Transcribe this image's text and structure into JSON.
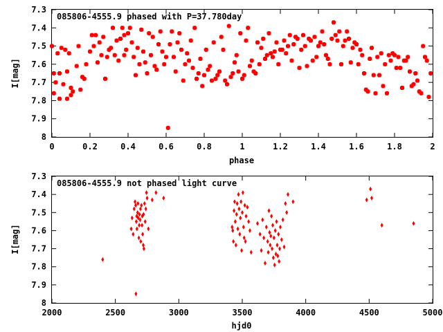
{
  "colors": {
    "points": "#ff0000",
    "axes": "#000000",
    "background": "#ffffff"
  },
  "chart_data": [
    {
      "type": "scatter",
      "title": "085806-4555.9 phased with P=37.780day",
      "xlabel": "phase",
      "ylabel": "I[mag]",
      "xlim": [
        0,
        2
      ],
      "ylim": [
        7.3,
        8
      ],
      "y_inverted": true,
      "marker": "square-dot",
      "grid": false,
      "xticks": [
        "0",
        "0.2",
        "0.4",
        "0.6",
        "0.8",
        "1",
        "1.2",
        "1.4",
        "1.6",
        "1.8",
        "2"
      ],
      "yticks": [
        "7.3",
        "7.4",
        "7.5",
        "7.6",
        "7.7",
        "7.8",
        "7.9",
        "8"
      ],
      "series": [
        {
          "x": [
            0.0,
            0.01,
            0.01,
            0.02,
            0.03,
            0.04,
            0.04,
            0.05,
            0.06,
            0.07,
            0.08,
            0.08,
            0.09,
            0.1,
            0.1,
            0.11,
            0.13,
            0.14,
            0.15,
            0.16,
            0.17,
            0.18,
            0.2,
            0.21,
            0.22,
            0.23,
            0.24,
            0.25,
            0.26,
            0.27,
            0.28,
            0.29,
            0.3,
            0.31,
            0.32,
            0.33,
            0.34,
            0.35,
            0.36,
            0.37,
            0.38,
            0.38,
            0.39,
            0.4,
            0.41,
            0.42,
            0.43,
            0.44,
            0.45,
            0.46,
            0.47,
            0.48,
            0.49,
            0.5,
            0.51,
            0.52,
            0.53,
            0.54,
            0.55,
            0.56,
            0.57,
            0.58,
            0.59,
            0.6,
            0.61,
            0.62,
            0.63,
            0.64,
            0.65,
            0.66,
            0.67,
            0.68,
            0.69,
            0.7,
            0.71,
            0.72,
            0.73,
            0.74,
            0.75,
            0.76,
            0.77,
            0.78,
            0.79,
            0.8,
            0.81,
            0.82,
            0.83,
            0.84,
            0.85,
            0.86,
            0.87,
            0.88,
            0.89,
            0.9,
            0.91,
            0.92,
            0.93,
            0.94,
            0.95,
            0.96,
            0.97,
            0.98,
            0.99,
            1.0,
            1.01,
            1.02,
            1.03,
            1.04,
            1.05,
            1.06,
            1.07,
            1.08,
            1.09,
            1.1,
            1.11,
            1.12,
            1.13,
            1.14,
            1.15,
            1.16,
            1.17,
            1.18,
            1.19,
            1.2,
            1.21,
            1.22,
            1.23,
            1.24,
            1.25,
            1.26,
            1.27,
            1.28,
            1.29,
            1.3,
            1.31,
            1.32,
            1.33,
            1.34,
            1.35,
            1.36,
            1.37,
            1.38,
            1.39,
            1.4,
            1.41,
            1.42,
            1.43,
            1.44,
            1.45,
            1.46,
            1.47,
            1.48,
            1.49,
            1.5,
            1.51,
            1.52,
            1.53,
            1.54,
            1.55,
            1.56,
            1.57,
            1.58,
            1.59,
            1.6,
            1.61,
            1.62,
            1.63,
            1.64,
            1.65,
            1.66,
            1.67,
            1.68,
            1.69,
            1.7,
            1.71,
            1.72,
            1.73,
            1.74,
            1.75,
            1.76,
            1.77,
            1.78,
            1.79,
            1.8,
            1.81,
            1.82,
            1.83,
            1.84,
            1.85,
            1.86,
            1.87,
            1.88,
            1.89,
            1.9,
            1.91,
            1.92,
            1.93,
            1.94,
            1.95,
            1.96,
            1.97,
            1.98,
            1.99
          ],
          "y": [
            7.5,
            7.76,
            7.65,
            7.7,
            7.54,
            7.79,
            7.65,
            7.51,
            7.71,
            7.52,
            7.79,
            7.64,
            7.54,
            7.77,
            7.73,
            7.75,
            7.61,
            7.5,
            7.74,
            7.67,
            7.68,
            7.6,
            7.53,
            7.44,
            7.5,
            7.44,
            7.59,
            7.48,
            7.55,
            7.45,
            7.68,
            7.56,
            7.52,
            7.51,
            7.4,
            7.55,
            7.47,
            7.58,
            7.46,
            7.4,
            7.44,
            7.55,
            7.52,
            7.43,
            7.4,
            7.48,
            7.56,
            7.66,
            7.51,
            7.6,
            7.41,
            7.53,
            7.59,
            7.65,
            7.43,
            7.55,
            7.45,
            7.61,
            7.63,
            7.49,
            7.42,
            7.53,
            7.6,
            7.56,
            7.95,
            7.49,
            7.42,
            7.56,
            7.64,
            7.48,
            7.43,
            7.52,
            7.69,
            7.6,
            7.54,
            7.58,
            7.47,
            7.62,
            7.4,
            7.68,
            7.65,
            7.57,
            7.72,
            7.66,
            7.52,
            7.63,
            7.61,
            7.69,
            7.48,
            7.68,
            7.66,
            7.64,
            7.45,
            7.52,
            7.69,
            7.71,
            7.39,
            7.67,
            7.65,
            7.59,
            7.55,
            7.64,
            7.43,
            7.68,
            7.66,
            7.47,
            7.4,
            7.61,
            7.58,
            7.64,
            7.65,
            7.48,
            7.6,
            7.51,
            7.46,
            7.57,
            7.55,
            7.43,
            7.54,
            7.56,
            7.53,
            7.48,
            7.6,
            7.52,
            7.52,
            7.47,
            7.54,
            7.5,
            7.44,
            7.58,
            7.49,
            7.45,
            7.46,
            7.62,
            7.52,
            7.44,
            7.5,
            7.61,
            7.46,
            7.47,
            7.58,
            7.45,
            7.56,
            7.5,
            7.48,
            7.42,
            7.49,
            7.55,
            7.57,
            7.6,
            7.46,
            7.37,
            7.44,
            7.47,
            7.42,
            7.6,
            7.5,
            7.47,
            7.42,
            7.46,
            7.59,
            7.51,
            7.48,
            7.49,
            7.6,
            7.52,
            7.55,
            7.65,
            7.74,
            7.75,
            7.57,
            7.51,
            7.66,
            7.76,
            7.56,
            7.66,
            7.54,
            7.72,
            7.6,
            7.76,
            7.55,
            7.58,
            7.54,
            7.55,
            7.62,
            7.56,
            7.62,
            7.73,
            7.58,
            7.58,
            7.56,
            7.64,
            7.72,
            7.71,
            7.65,
            7.69,
            7.75,
            7.76,
            7.5,
            7.56,
            7.58,
            7.78,
            7.65
          ]
        }
      ]
    },
    {
      "type": "scatter",
      "title": "085806-4555.9 not phased light curve",
      "xlabel": "hjd0",
      "ylabel": "I[mag]",
      "xlim": [
        2000,
        5000
      ],
      "ylim": [
        7.3,
        8
      ],
      "y_inverted": true,
      "marker": "diamond",
      "grid": false,
      "xticks": [
        "2000",
        "2500",
        "3000",
        "3500",
        "4000",
        "4500",
        "5000"
      ],
      "yticks": [
        "7.3",
        "7.4",
        "7.5",
        "7.6",
        "7.7",
        "7.8",
        "7.9",
        "8"
      ],
      "series": [
        {
          "x": [
            2400,
            2625,
            2632,
            2640,
            2648,
            2655,
            2660,
            2662,
            2665,
            2668,
            2670,
            2675,
            2678,
            2680,
            2685,
            2688,
            2690,
            2695,
            2698,
            2700,
            2705,
            2710,
            2712,
            2715,
            2720,
            2722,
            2725,
            2730,
            2735,
            2740,
            2745,
            2750,
            2760,
            2790,
            2820,
            2880,
            3420,
            3425,
            3430,
            3435,
            3440,
            3445,
            3450,
            3455,
            3460,
            3465,
            3470,
            3475,
            3480,
            3485,
            3490,
            3495,
            3500,
            3505,
            3510,
            3515,
            3520,
            3525,
            3530,
            3540,
            3550,
            3560,
            3570,
            3620,
            3640,
            3650,
            3660,
            3670,
            3680,
            3690,
            3700,
            3705,
            3710,
            3715,
            3720,
            3725,
            3730,
            3735,
            3740,
            3745,
            3750,
            3755,
            3760,
            3765,
            3770,
            3775,
            3780,
            3785,
            3790,
            3795,
            3800,
            3810,
            3820,
            3830,
            3840,
            3850,
            3860,
            3900,
            4480,
            4510,
            4520,
            4600,
            4850
          ],
          "y": [
            7.76,
            7.59,
            7.53,
            7.62,
            7.48,
            7.44,
            7.46,
            7.95,
            7.55,
            7.52,
            7.59,
            7.5,
            7.45,
            7.53,
            7.64,
            7.57,
            7.51,
            7.54,
            7.48,
            7.66,
            7.46,
            7.57,
            7.52,
            7.62,
            7.68,
            7.51,
            7.7,
            7.45,
            7.55,
            7.48,
            7.39,
            7.42,
            7.59,
            7.43,
            7.39,
            7.42,
            7.58,
            7.6,
            7.66,
            7.49,
            7.44,
            7.55,
            7.68,
            7.51,
            7.45,
            7.59,
            7.4,
            7.48,
            7.62,
            7.53,
            7.44,
            7.71,
            7.5,
            7.39,
            7.58,
            7.64,
            7.46,
            7.66,
            7.52,
            7.47,
            7.55,
            7.6,
            7.72,
            7.56,
            7.62,
            7.71,
            7.54,
            7.64,
            7.78,
            7.58,
            7.66,
            7.72,
            7.49,
            7.61,
            7.68,
            7.63,
            7.52,
            7.7,
            7.57,
            7.75,
            7.64,
            7.79,
            7.6,
            7.73,
            7.55,
            7.68,
            7.74,
            7.62,
            7.77,
            7.7,
            7.58,
            7.65,
            7.54,
            7.69,
            7.45,
            7.5,
            7.4,
            7.44,
            7.43,
            7.37,
            7.42,
            7.57,
            7.56
          ]
        }
      ]
    }
  ]
}
